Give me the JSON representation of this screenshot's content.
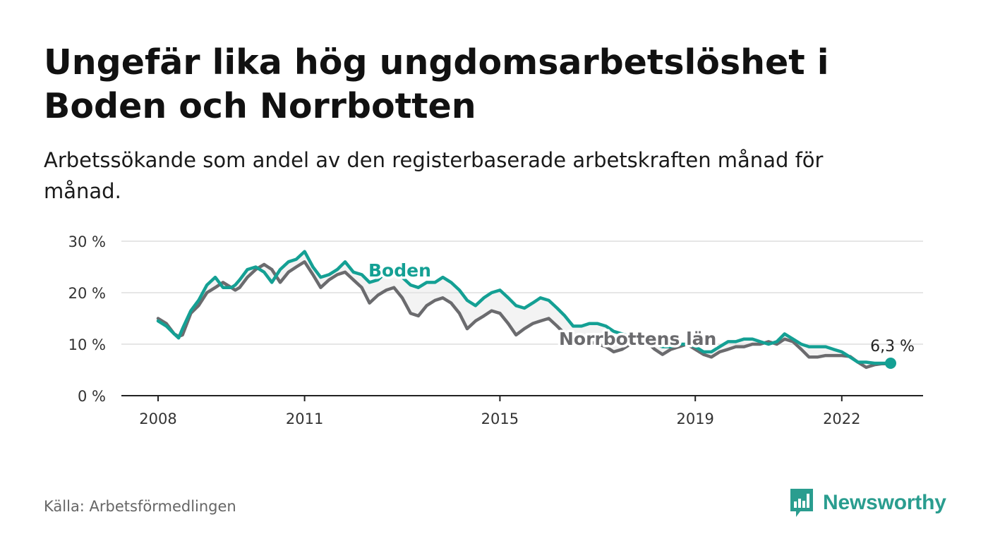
{
  "title": "Ungefär lika hög ungdomsarbetslöshet i Boden och Norrbotten",
  "subtitle": "Arbetssökande som andel av den registerbaserade arbetskraften månad för månad.",
  "source": "Källa: Arbetsförmedlingen",
  "brand": {
    "name": "Newsworthy"
  },
  "colors": {
    "boden": "#14a094",
    "norrbotten": "#6b6b6e",
    "grid": "#dddddd",
    "axis": "#222222",
    "band": "#e5e5e5"
  },
  "chart_data": {
    "type": "line",
    "ylim": [
      0,
      30
    ],
    "yticks": [
      0,
      10,
      20,
      30
    ],
    "ytick_labels": [
      "0 %",
      "10 %",
      "20 %",
      "30 %"
    ],
    "xlim": [
      2007.25,
      2023.6
    ],
    "xticks": [
      2008,
      2011,
      2015,
      2019,
      2022
    ],
    "xtick_labels": [
      "2008",
      "2011",
      "2015",
      "2019",
      "2022"
    ],
    "end_label": "6,3 %",
    "series": [
      {
        "name": "Norrbottens län",
        "label": "Norrbottens län",
        "x": [
          2008.0,
          2008.17,
          2008.33,
          2008.42,
          2008.5,
          2008.67,
          2008.83,
          2009.0,
          2009.17,
          2009.33,
          2009.5,
          2009.58,
          2009.67,
          2009.83,
          2010.0,
          2010.17,
          2010.33,
          2010.5,
          2010.67,
          2010.83,
          2011.0,
          2011.17,
          2011.33,
          2011.5,
          2011.67,
          2011.83,
          2012.0,
          2012.17,
          2012.33,
          2012.5,
          2012.67,
          2012.83,
          2013.0,
          2013.17,
          2013.33,
          2013.5,
          2013.67,
          2013.83,
          2014.0,
          2014.17,
          2014.33,
          2014.5,
          2014.67,
          2014.83,
          2015.0,
          2015.17,
          2015.33,
          2015.5,
          2015.67,
          2015.83,
          2016.0,
          2016.17,
          2016.33,
          2016.5,
          2016.67,
          2016.83,
          2017.0,
          2017.17,
          2017.33,
          2017.5,
          2017.67,
          2017.83,
          2018.0,
          2018.17,
          2018.33,
          2018.5,
          2018.67,
          2018.83,
          2019.0,
          2019.17,
          2019.33,
          2019.5,
          2019.67,
          2019.83,
          2020.0,
          2020.17,
          2020.33,
          2020.5,
          2020.67,
          2020.83,
          2021.0,
          2021.17,
          2021.33,
          2021.5,
          2021.67,
          2021.83,
          2022.0,
          2022.17,
          2022.33,
          2022.5,
          2022.67,
          2022.83,
          2023.0
        ],
        "values": [
          15,
          14,
          12,
          11.5,
          11.8,
          16,
          17.5,
          20,
          21,
          22,
          21,
          20.5,
          21,
          23,
          24.5,
          25.5,
          24.5,
          22,
          24,
          25,
          26,
          23.5,
          21,
          22.5,
          23.5,
          24,
          22.5,
          21,
          18,
          19.5,
          20.5,
          21,
          19,
          16,
          15.5,
          17.5,
          18.5,
          19,
          18,
          16,
          13,
          14.5,
          15.5,
          16.5,
          16,
          14,
          11.8,
          13,
          14,
          14.5,
          15,
          13.5,
          12,
          11.5,
          11,
          10.5,
          10,
          9.5,
          8.5,
          9,
          10,
          11,
          10.5,
          9,
          8,
          9,
          9.5,
          10,
          9,
          8,
          7.5,
          8.5,
          9,
          9.5,
          9.5,
          10,
          10,
          10.5,
          10,
          11,
          10.5,
          9,
          7.5,
          7.5,
          7.8,
          7.8,
          7.8,
          7.6,
          6.5,
          5.5,
          6,
          6.2,
          6.2
        ]
      },
      {
        "name": "Boden",
        "label": "Boden",
        "x": [
          2008.0,
          2008.17,
          2008.33,
          2008.42,
          2008.5,
          2008.67,
          2008.83,
          2009.0,
          2009.17,
          2009.33,
          2009.5,
          2009.58,
          2009.67,
          2009.83,
          2010.0,
          2010.17,
          2010.33,
          2010.5,
          2010.67,
          2010.83,
          2011.0,
          2011.17,
          2011.33,
          2011.5,
          2011.67,
          2011.83,
          2012.0,
          2012.17,
          2012.33,
          2012.5,
          2012.67,
          2012.83,
          2013.0,
          2013.17,
          2013.33,
          2013.5,
          2013.67,
          2013.83,
          2014.0,
          2014.17,
          2014.33,
          2014.5,
          2014.67,
          2014.83,
          2015.0,
          2015.17,
          2015.33,
          2015.5,
          2015.67,
          2015.83,
          2016.0,
          2016.17,
          2016.33,
          2016.5,
          2016.67,
          2016.83,
          2017.0,
          2017.17,
          2017.33,
          2017.5,
          2017.67,
          2017.83,
          2018.0,
          2018.17,
          2018.33,
          2018.5,
          2018.67,
          2018.83,
          2019.0,
          2019.17,
          2019.33,
          2019.5,
          2019.67,
          2019.83,
          2020.0,
          2020.17,
          2020.33,
          2020.5,
          2020.67,
          2020.83,
          2021.0,
          2021.17,
          2021.33,
          2021.5,
          2021.67,
          2021.83,
          2022.0,
          2022.17,
          2022.33,
          2022.5,
          2022.67,
          2022.83,
          2023.0
        ],
        "values": [
          14.5,
          13.5,
          12,
          11.2,
          13,
          16.5,
          18.5,
          21.5,
          23,
          21,
          21,
          21.5,
          22.5,
          24.5,
          25,
          24,
          22,
          24.5,
          26,
          26.5,
          28,
          25,
          23,
          23.5,
          24.5,
          26,
          24,
          23.5,
          22,
          22.5,
          24,
          24.5,
          23,
          21.5,
          21,
          22,
          22,
          23,
          22,
          20.5,
          18.5,
          17.5,
          19,
          20,
          20.5,
          19,
          17.5,
          17,
          18,
          19,
          18.5,
          17,
          15.5,
          13.5,
          13.5,
          14,
          14,
          13.5,
          12.5,
          12,
          11.5,
          11.5,
          11,
          10,
          9.5,
          9.5,
          10,
          10,
          9.5,
          8.5,
          8.5,
          9.5,
          10.5,
          10.5,
          11,
          11,
          10.5,
          10,
          10.5,
          12,
          11,
          10,
          9.5,
          9.5,
          9.5,
          9,
          8.5,
          7.5,
          6.5,
          6.5,
          6.3,
          6.3,
          6.3
        ]
      }
    ]
  }
}
